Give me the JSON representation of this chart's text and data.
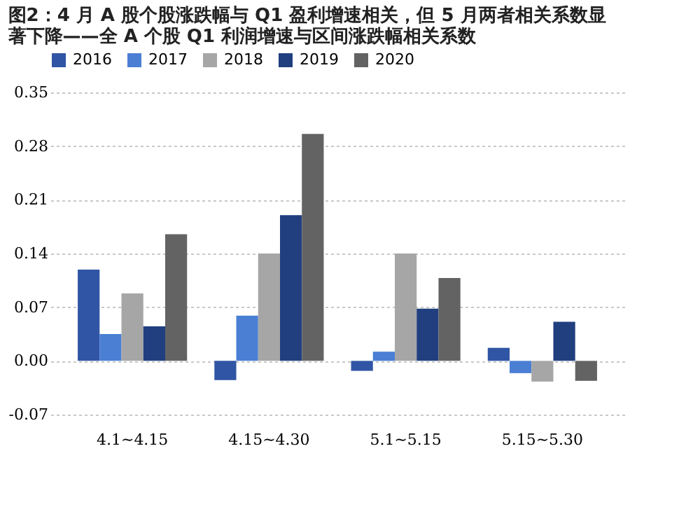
{
  "chart_data": {
    "type": "bar",
    "title": [
      "图2：4 月 A 股个股涨跌幅与 Q1 盈利增速相关，但 5 月两者相关系数显",
      "著下降——全 A 个股 Q1 利润增速与区间涨跌幅相关系数"
    ],
    "categories": [
      "4.1~4.15",
      "4.15~4.30",
      "5.1~5.15",
      "5.15~5.30"
    ],
    "series": [
      {
        "name": "2016",
        "color": "#2f55a4",
        "values": [
          0.119,
          -0.025,
          -0.013,
          0.017
        ]
      },
      {
        "name": "2017",
        "color": "#4a7fd4",
        "values": [
          0.035,
          0.059,
          0.012,
          -0.016
        ]
      },
      {
        "name": "2018",
        "color": "#a6a6a6",
        "values": [
          0.088,
          0.14,
          0.14,
          -0.027
        ]
      },
      {
        "name": "2019",
        "color": "#213f7f",
        "values": [
          0.045,
          0.19,
          0.068,
          0.051
        ]
      },
      {
        "name": "2020",
        "color": "#636363",
        "values": [
          0.165,
          0.296,
          0.108,
          -0.026
        ]
      }
    ],
    "ylim": [
      -0.07,
      0.35
    ],
    "yticks": [
      {
        "value": -0.07,
        "label": "-0.07"
      },
      {
        "value": 0,
        "label": "0.00"
      },
      {
        "value": 0.07,
        "label": "0.07"
      },
      {
        "value": 0.14,
        "label": "0.14"
      },
      {
        "value": 0.21,
        "label": "0.21"
      },
      {
        "value": 0.28,
        "label": "0.28"
      },
      {
        "value": 0.35,
        "label": "0.35"
      }
    ],
    "grid": "y",
    "legend": "top"
  }
}
